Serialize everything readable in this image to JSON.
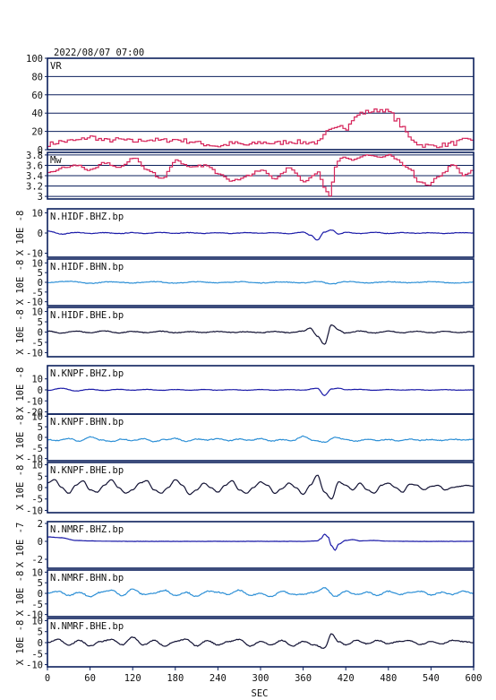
{
  "header": {
    "datetime": "2022/08/07 07:00"
  },
  "chart_data": {
    "type": "line",
    "xlabel": "SEC",
    "xlim": [
      0,
      600
    ],
    "xticks": [
      0,
      60,
      120,
      180,
      240,
      300,
      360,
      420,
      480,
      540,
      600
    ],
    "colors": {
      "red": "#d6245a",
      "navy": "#1a1aa8",
      "sky": "#2c8fd6",
      "black": "#111133",
      "frame": "#0b1f5c"
    },
    "panels": [
      {
        "label": "VR",
        "ylabel": "",
        "ylim": [
          0,
          100
        ],
        "yticks": [
          0,
          20,
          40,
          60,
          80,
          100
        ],
        "grid": true,
        "color": "red",
        "step": true,
        "x": [
          0,
          20,
          40,
          60,
          80,
          100,
          120,
          140,
          160,
          180,
          200,
          220,
          240,
          260,
          280,
          300,
          320,
          340,
          360,
          380,
          395,
          410,
          420,
          430,
          440,
          455,
          470,
          480,
          490,
          500,
          510,
          525,
          540,
          555,
          570,
          585,
          600
        ],
        "y": [
          6,
          9,
          10,
          14,
          10,
          11,
          9,
          11,
          10,
          11,
          9,
          6,
          4,
          7,
          5,
          8,
          7,
          9,
          8,
          8,
          20,
          28,
          24,
          34,
          40,
          42,
          44,
          41,
          33,
          23,
          12,
          5,
          4,
          5,
          7,
          10,
          11
        ]
      },
      {
        "label": "Mw",
        "ylabel": "",
        "ylim": [
          2.95,
          3.85
        ],
        "yticks": [
          3.0,
          3.2,
          3.4,
          3.6,
          3.8
        ],
        "grid": true,
        "color": "red",
        "step": true,
        "x": [
          0,
          20,
          40,
          60,
          80,
          100,
          120,
          140,
          160,
          180,
          200,
          220,
          240,
          260,
          280,
          300,
          320,
          340,
          360,
          380,
          390,
          395,
          400,
          405,
          410,
          430,
          450,
          470,
          480,
          490,
          500,
          510,
          520,
          535,
          550,
          570,
          585,
          600
        ],
        "y": [
          3.45,
          3.55,
          3.6,
          3.5,
          3.65,
          3.55,
          3.75,
          3.5,
          3.35,
          3.7,
          3.55,
          3.6,
          3.45,
          3.3,
          3.4,
          3.5,
          3.35,
          3.55,
          3.3,
          3.45,
          3.15,
          3.0,
          3.3,
          3.6,
          3.75,
          3.7,
          3.8,
          3.75,
          3.8,
          3.7,
          3.6,
          3.5,
          3.3,
          3.2,
          3.4,
          3.6,
          3.4,
          3.5
        ]
      },
      {
        "label": "N.HIDF.BHZ.bp",
        "ylabel": "X 10E -8",
        "ylim": [
          -12,
          12
        ],
        "yticks": [
          -10,
          0,
          10
        ],
        "grid": false,
        "color": "navy",
        "noise": 0.25,
        "x": [
          0,
          20,
          40,
          60,
          80,
          100,
          120,
          140,
          160,
          180,
          200,
          220,
          240,
          260,
          280,
          300,
          320,
          340,
          360,
          370,
          380,
          390,
          400,
          410,
          420,
          440,
          460,
          480,
          500,
          520,
          540,
          560,
          580,
          600
        ],
        "y": [
          1,
          -0.5,
          0.3,
          -0.2,
          0.2,
          -0.3,
          0.2,
          -0.2,
          0.3,
          -0.1,
          0.2,
          -0.2,
          0.1,
          -0.2,
          0.2,
          -0.1,
          0.2,
          -0.3,
          0.4,
          -1,
          -3.5,
          0.5,
          1.5,
          -0.5,
          0.3,
          -0.2,
          0.3,
          -0.2,
          0.2,
          -0.1,
          0.1,
          -0.2,
          0.2,
          0
        ]
      },
      {
        "label": "N.HIDF.BHN.bp",
        "ylabel": "X 10E -8",
        "ylim": [
          -12,
          12
        ],
        "yticks": [
          -10,
          -5,
          0,
          5,
          10
        ],
        "grid": false,
        "color": "sky",
        "noise": 0.35,
        "x": [
          0,
          30,
          60,
          90,
          120,
          150,
          180,
          210,
          240,
          270,
          300,
          330,
          360,
          380,
          400,
          420,
          450,
          480,
          510,
          540,
          570,
          600
        ],
        "y": [
          0,
          0.5,
          -0.5,
          0.3,
          -0.3,
          0.4,
          -0.4,
          0.3,
          -0.2,
          0.3,
          -0.3,
          0.2,
          -0.3,
          0.5,
          -0.8,
          0.4,
          -0.3,
          0.3,
          -0.2,
          0.3,
          -0.3,
          0
        ]
      },
      {
        "label": "N.HIDF.BHE.bp",
        "ylabel": "X 10E -8",
        "ylim": [
          -12,
          12
        ],
        "yticks": [
          -10,
          -5,
          0,
          5,
          10
        ],
        "grid": false,
        "color": "black",
        "noise": 0.3,
        "x": [
          0,
          20,
          40,
          60,
          80,
          100,
          120,
          140,
          160,
          180,
          200,
          220,
          240,
          260,
          280,
          300,
          320,
          340,
          360,
          370,
          380,
          390,
          400,
          410,
          420,
          440,
          460,
          480,
          500,
          520,
          540,
          560,
          580,
          600
        ],
        "y": [
          0.5,
          -0.5,
          0.5,
          -0.3,
          0.6,
          -0.4,
          0.3,
          -0.3,
          0.4,
          -0.3,
          0.2,
          -0.2,
          0.3,
          -0.2,
          0.2,
          -0.3,
          0.3,
          -0.3,
          0.5,
          2,
          -2,
          -6,
          3.5,
          1,
          -0.5,
          0.5,
          -0.4,
          0.5,
          -0.3,
          0.4,
          -0.3,
          0.3,
          -0.2,
          0.2
        ]
      },
      {
        "label": "N.KNPF.BHZ.bp",
        "ylabel": "X 10E -8",
        "ylim": [
          -22,
          22
        ],
        "yticks": [
          -20,
          -10,
          0,
          10
        ],
        "grid": false,
        "color": "navy",
        "noise": 0.3,
        "x": [
          0,
          20,
          40,
          60,
          80,
          100,
          120,
          140,
          160,
          180,
          200,
          220,
          240,
          260,
          280,
          300,
          320,
          340,
          360,
          380,
          390,
          400,
          410,
          420,
          440,
          460,
          480,
          500,
          520,
          540,
          560,
          580,
          600
        ],
        "y": [
          -0.5,
          1.5,
          -1,
          0.5,
          -0.5,
          0.5,
          -0.3,
          0.4,
          -0.4,
          0.3,
          -0.3,
          0.3,
          -0.3,
          0.2,
          -0.3,
          0.3,
          -0.3,
          0.2,
          -0.2,
          1.5,
          -5,
          0.8,
          1.5,
          0.2,
          0.4,
          -0.3,
          0.3,
          -0.2,
          0.2,
          -0.3,
          0.2,
          -0.2,
          0
        ]
      },
      {
        "label": "N.KNPF.BHN.bp",
        "ylabel": "X 10E -8",
        "ylim": [
          -11,
          11
        ],
        "yticks": [
          -10,
          -5,
          0,
          5,
          10
        ],
        "grid": false,
        "color": "sky",
        "noise": 0.4,
        "x": [
          0,
          15,
          30,
          45,
          60,
          75,
          90,
          105,
          120,
          135,
          150,
          165,
          180,
          195,
          210,
          225,
          240,
          255,
          270,
          285,
          300,
          315,
          330,
          345,
          360,
          375,
          390,
          405,
          420,
          435,
          450,
          465,
          480,
          495,
          510,
          525,
          540,
          555,
          570,
          585,
          600
        ],
        "y": [
          -1,
          -1.5,
          -0.5,
          -1.8,
          0.2,
          -1.2,
          -2,
          -0.8,
          -1.5,
          -0.5,
          -2,
          -1,
          -0.5,
          -1.8,
          -0.8,
          -1.2,
          -0.6,
          -1.6,
          -0.8,
          -1.4,
          -0.5,
          -1.8,
          -1,
          -1.5,
          0.5,
          -1.5,
          -2.2,
          0,
          -1,
          -1.8,
          -0.8,
          -1.5,
          -1,
          -1.6,
          -0.8,
          -1.4,
          -1,
          -1.5,
          -0.9,
          -1.2,
          -1
        ]
      },
      {
        "label": "N.KNPF.BHE.bp",
        "ylabel": "X 10E -8",
        "ylim": [
          -11,
          11
        ],
        "yticks": [
          -10,
          -5,
          0,
          5,
          10
        ],
        "grid": false,
        "color": "black",
        "noise": 0.2,
        "x": [
          0,
          10,
          20,
          30,
          40,
          50,
          60,
          70,
          80,
          90,
          100,
          110,
          120,
          130,
          140,
          150,
          160,
          170,
          180,
          190,
          200,
          210,
          220,
          230,
          240,
          250,
          260,
          270,
          280,
          290,
          300,
          310,
          320,
          330,
          340,
          350,
          360,
          370,
          380,
          390,
          400,
          410,
          420,
          430,
          440,
          450,
          460,
          470,
          480,
          490,
          500,
          510,
          520,
          530,
          540,
          550,
          560,
          570,
          580,
          590,
          600
        ],
        "y": [
          2,
          3.5,
          0,
          -2.5,
          1,
          3,
          -1,
          -2,
          1,
          3.5,
          0,
          -2.5,
          -1,
          2,
          3,
          -1,
          -2.5,
          0,
          3.5,
          1,
          -3,
          -1,
          2,
          0,
          -2,
          1,
          3,
          -1,
          -2.5,
          0,
          2.5,
          1,
          -2.5,
          -0.5,
          2,
          0,
          -3,
          1,
          5.5,
          -2,
          -5,
          2.5,
          1,
          -1,
          2,
          -1,
          -2.5,
          1,
          2,
          0,
          -2,
          1.5,
          1,
          -1,
          0.5,
          1,
          -1,
          0,
          0.5,
          1,
          0.5
        ]
      },
      {
        "label": "N.NMRF.BHZ.bp",
        "ylabel": "X 10E -7",
        "ylim": [
          -3,
          2.2
        ],
        "yticks": [
          -2,
          0,
          2
        ],
        "grid": false,
        "color": "navy",
        "noise": 0.02,
        "x": [
          0,
          20,
          40,
          60,
          80,
          100,
          120,
          140,
          160,
          180,
          200,
          240,
          280,
          320,
          360,
          380,
          385,
          390,
          395,
          400,
          405,
          410,
          420,
          430,
          440,
          460,
          480,
          520,
          560,
          600
        ],
        "y": [
          0.5,
          0.4,
          0.1,
          0.05,
          0.02,
          0.01,
          0,
          0,
          0,
          0,
          0,
          0,
          0,
          0,
          0,
          0.05,
          0.3,
          0.8,
          0.5,
          -0.5,
          -1.0,
          -0.3,
          0.1,
          0.2,
          0.05,
          0.1,
          0.02,
          0,
          0,
          0
        ]
      },
      {
        "label": "N.NMRF.BHN.bp",
        "ylabel": "X 10E -8",
        "ylim": [
          -11,
          11
        ],
        "yticks": [
          -10,
          -5,
          0,
          5,
          10
        ],
        "grid": false,
        "color": "sky",
        "noise": 0.5,
        "x": [
          0,
          15,
          30,
          45,
          60,
          75,
          90,
          105,
          120,
          135,
          150,
          165,
          180,
          195,
          210,
          225,
          240,
          255,
          270,
          285,
          300,
          315,
          330,
          345,
          360,
          375,
          390,
          405,
          420,
          435,
          450,
          465,
          480,
          495,
          510,
          525,
          540,
          555,
          570,
          585,
          600
        ],
        "y": [
          0,
          1,
          -1,
          0.5,
          -1.5,
          0.5,
          1.5,
          -1,
          2,
          -0.5,
          0,
          1.5,
          -1,
          0.5,
          -1.5,
          1,
          0.5,
          -0.5,
          1.5,
          -1,
          0,
          -1.5,
          1,
          -0.5,
          -0.5,
          0.5,
          2.5,
          -1.5,
          1,
          -0.5,
          0.5,
          -1,
          1,
          -0.5,
          0.3,
          1,
          -0.8,
          0.5,
          -0.5,
          1,
          0
        ]
      },
      {
        "label": "N.NMRF.BHE.bp",
        "ylabel": "X 10E -8",
        "ylim": [
          -11,
          11
        ],
        "yticks": [
          -10,
          -5,
          0,
          5,
          10
        ],
        "grid": false,
        "color": "black",
        "noise": 0.4,
        "x": [
          0,
          15,
          30,
          45,
          60,
          75,
          90,
          105,
          120,
          135,
          150,
          165,
          180,
          195,
          210,
          225,
          240,
          255,
          270,
          285,
          300,
          315,
          330,
          345,
          360,
          375,
          390,
          400,
          410,
          420,
          435,
          450,
          465,
          480,
          495,
          510,
          525,
          540,
          555,
          570,
          585,
          600
        ],
        "y": [
          0,
          1.5,
          -1,
          1,
          -1.5,
          0.5,
          1.5,
          -1,
          2.5,
          -1,
          1,
          -1.5,
          0.5,
          1.5,
          -1.5,
          1,
          -1,
          0.5,
          1.5,
          -1.5,
          0.5,
          -1,
          1,
          -1.5,
          0.5,
          -1,
          -2.5,
          4,
          0.5,
          -1,
          1,
          -0.5,
          1,
          -0.5,
          0.5,
          1,
          -0.8,
          0.5,
          -0.5,
          1,
          0.5,
          0
        ]
      }
    ]
  }
}
